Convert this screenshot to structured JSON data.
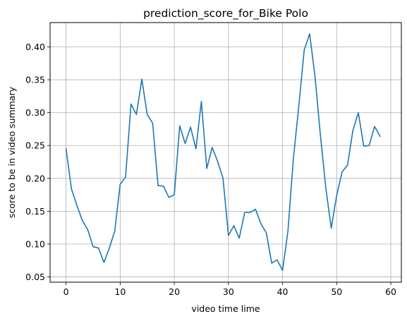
{
  "chart_data": {
    "type": "line",
    "title": "prediction_score_for_Bike Polo",
    "xlabel": "video time lime",
    "ylabel": "score to be in video summary",
    "xlim": [
      -2.95,
      61.95
    ],
    "ylim": [
      0.042,
      0.437
    ],
    "xticks": [
      0,
      10,
      20,
      30,
      40,
      50,
      60
    ],
    "yticks": [
      0.05,
      0.1,
      0.15,
      0.2,
      0.25,
      0.3,
      0.35,
      0.4
    ],
    "ytick_labels": [
      "0.05",
      "0.10",
      "0.15",
      "0.20",
      "0.25",
      "0.30",
      "0.35",
      "0.40"
    ],
    "grid": true,
    "color": "#1f77b4",
    "series": [
      {
        "x": [
          0,
          1,
          2,
          3,
          4,
          5,
          6,
          7,
          8,
          9,
          10,
          11,
          12,
          13,
          14,
          15,
          16,
          17,
          18,
          19,
          20,
          21,
          22,
          23,
          24,
          25,
          26,
          27,
          28,
          29,
          30,
          31,
          32,
          33,
          34,
          35,
          36,
          37,
          38,
          39,
          40,
          41,
          42,
          43,
          44,
          45,
          46,
          47,
          48,
          49,
          50,
          51,
          52,
          53,
          54,
          55,
          56,
          57,
          58
        ],
        "values": [
          0.245,
          0.184,
          0.159,
          0.136,
          0.122,
          0.096,
          0.094,
          0.072,
          0.094,
          0.12,
          0.191,
          0.202,
          0.313,
          0.297,
          0.351,
          0.297,
          0.284,
          0.189,
          0.188,
          0.171,
          0.175,
          0.28,
          0.253,
          0.278,
          0.245,
          0.317,
          0.215,
          0.247,
          0.226,
          0.2,
          0.113,
          0.128,
          0.109,
          0.148,
          0.148,
          0.153,
          0.131,
          0.117,
          0.071,
          0.076,
          0.06,
          0.12,
          0.23,
          0.31,
          0.395,
          0.42,
          0.355,
          0.265,
          0.185,
          0.124,
          0.174,
          0.21,
          0.22,
          0.273,
          0.3,
          0.249,
          0.25,
          0.279,
          0.264
        ]
      }
    ]
  }
}
